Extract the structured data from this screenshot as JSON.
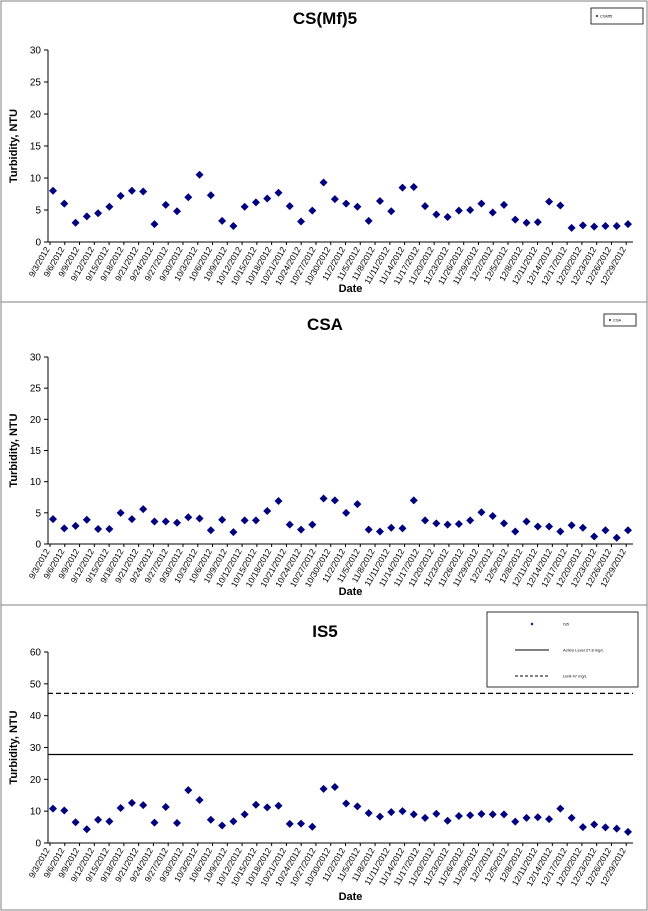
{
  "chart_data": [
    {
      "type": "scatter",
      "title": "CS(Mf)5",
      "xlabel": "Date",
      "ylabel": "Turbidity, NTU",
      "ylim": [
        0,
        30
      ],
      "yticks": [
        0,
        5,
        10,
        15,
        20,
        25,
        30
      ],
      "x_tick_labels": [
        "9/3/2012",
        "9/6/2012",
        "9/9/2012",
        "9/12/2012",
        "9/15/2012",
        "9/18/2012",
        "9/21/2012",
        "9/24/2012",
        "9/27/2012",
        "9/30/2012",
        "10/3/2012",
        "10/6/2012",
        "10/9/2012",
        "10/12/2012",
        "10/15/2012",
        "10/18/2012",
        "10/21/2012",
        "10/24/2012",
        "10/27/2012",
        "10/30/2012",
        "11/2/2012",
        "11/5/2012",
        "11/8/2012",
        "11/11/2012",
        "11/14/2012",
        "11/17/2012",
        "11/20/2012",
        "11/23/2012",
        "11/26/2012",
        "11/29/2012",
        "12/2/2012",
        "12/5/2012",
        "12/8/2012",
        "12/11/2012",
        "12/14/2012",
        "12/17/2012",
        "12/20/2012",
        "12/23/2012",
        "12/26/2012",
        "12/29/2012"
      ],
      "legend": {
        "position": "top-right",
        "entries": [
          "CSMf5"
        ]
      },
      "series": [
        {
          "values": [
            8.0,
            6.0,
            3.0,
            4.0,
            4.5,
            5.5,
            7.2,
            8.0,
            7.9,
            2.8,
            5.8,
            4.8,
            7.0,
            10.5,
            7.3,
            3.3,
            2.5,
            5.5,
            6.2,
            6.8,
            7.7,
            5.6,
            3.2,
            4.9,
            9.3,
            6.7,
            6.0,
            5.5,
            3.3,
            6.4,
            4.8,
            8.5,
            8.6,
            5.6,
            4.3,
            3.9,
            4.9,
            5.0,
            6.0,
            4.6,
            5.8,
            3.5,
            3.0,
            3.1,
            6.3,
            5.7,
            2.2,
            2.6,
            2.4,
            2.5,
            2.5,
            2.8
          ]
        }
      ]
    },
    {
      "type": "scatter",
      "title": "CSA",
      "xlabel": "Date",
      "ylabel": "Turbidity, NTU",
      "ylim": [
        0,
        30
      ],
      "yticks": [
        0,
        5,
        10,
        15,
        20,
        25,
        30
      ],
      "x_tick_labels": [
        "9/3/2012",
        "9/6/2012",
        "9/9/2012",
        "9/12/2012",
        "9/15/2012",
        "9/18/2012",
        "9/21/2012",
        "9/24/2012",
        "9/27/2012",
        "9/30/2012",
        "10/3/2012",
        "10/6/2012",
        "10/9/2012",
        "10/12/2012",
        "10/15/2012",
        "10/18/2012",
        "10/21/2012",
        "10/24/2012",
        "10/27/2012",
        "10/30/2012",
        "11/2/2012",
        "11/5/2012",
        "11/8/2012",
        "11/11/2012",
        "11/14/2012",
        "11/17/2012",
        "11/20/2012",
        "11/23/2012",
        "11/26/2012",
        "11/29/2012",
        "12/2/2012",
        "12/5/2012",
        "12/8/2012",
        "12/11/2012",
        "12/14/2012",
        "12/17/2012",
        "12/20/2012",
        "12/23/2012",
        "12/26/2012",
        "12/29/2012"
      ],
      "legend": {
        "position": "top-right",
        "entries": [
          "CSA"
        ]
      },
      "series": [
        {
          "values": [
            4.0,
            2.5,
            2.9,
            3.9,
            2.4,
            2.4,
            5.0,
            4.0,
            5.6,
            3.6,
            3.6,
            3.4,
            4.3,
            4.1,
            2.2,
            3.9,
            1.9,
            3.8,
            3.8,
            5.3,
            6.9,
            3.1,
            2.3,
            3.1,
            7.3,
            7.0,
            5.0,
            6.4,
            2.3,
            2.0,
            2.6,
            2.5,
            7.0,
            3.8,
            3.3,
            3.1,
            3.2,
            3.8,
            5.1,
            4.5,
            3.3,
            2.0,
            3.6,
            2.8,
            2.8,
            2.0,
            3.0,
            2.6,
            1.2,
            2.2,
            1.0,
            2.2
          ]
        }
      ]
    },
    {
      "type": "scatter",
      "title": "IS5",
      "xlabel": "Date",
      "ylabel": "Turbidity, NTU",
      "ylim": [
        0,
        60
      ],
      "yticks": [
        0,
        10,
        20,
        30,
        40,
        50,
        60
      ],
      "x_tick_labels": [
        "9/3/2012",
        "9/6/2012",
        "9/9/2012",
        "9/12/2012",
        "9/15/2012",
        "9/18/2012",
        "9/21/2012",
        "9/24/2012",
        "9/27/2012",
        "9/30/2012",
        "10/3/2012",
        "10/6/2012",
        "10/9/2012",
        "10/12/2012",
        "10/15/2012",
        "10/18/2012",
        "10/21/2012",
        "10/24/2012",
        "10/27/2012",
        "10/30/2012",
        "11/2/2012",
        "11/5/2012",
        "11/8/2012",
        "11/11/2012",
        "11/14/2012",
        "11/17/2012",
        "11/20/2012",
        "11/23/2012",
        "11/26/2012",
        "11/29/2012",
        "12/2/2012",
        "12/5/2012",
        "12/8/2012",
        "12/11/2012",
        "12/14/2012",
        "12/17/2012",
        "12/20/2012",
        "12/23/2012",
        "12/26/2012",
        "12/29/2012"
      ],
      "legend": {
        "position": "top-right",
        "entries": [
          "IS5",
          "Action Level 27.8 mg/L",
          "Limit 47 mg/L"
        ]
      },
      "reference_lines": [
        {
          "value": 27.8,
          "style": "solid"
        },
        {
          "value": 47,
          "style": "dashed"
        }
      ],
      "series": [
        {
          "values": [
            10.8,
            10.2,
            6.5,
            4.3,
            7.3,
            6.8,
            11.0,
            12.6,
            11.9,
            6.4,
            11.3,
            6.3,
            16.6,
            13.5,
            7.3,
            5.5,
            6.8,
            9.0,
            12.0,
            11.2,
            11.7,
            6.0,
            6.1,
            5.1,
            17.0,
            17.6,
            12.4,
            11.5,
            9.4,
            8.3,
            9.7,
            10.0,
            9.0,
            7.9,
            9.2,
            7.0,
            8.5,
            8.7,
            9.1,
            9.0,
            9.0,
            6.7,
            7.9,
            8.1,
            7.5,
            10.8,
            7.9,
            5.0,
            5.8,
            4.9,
            4.5,
            3.5
          ]
        }
      ]
    }
  ]
}
